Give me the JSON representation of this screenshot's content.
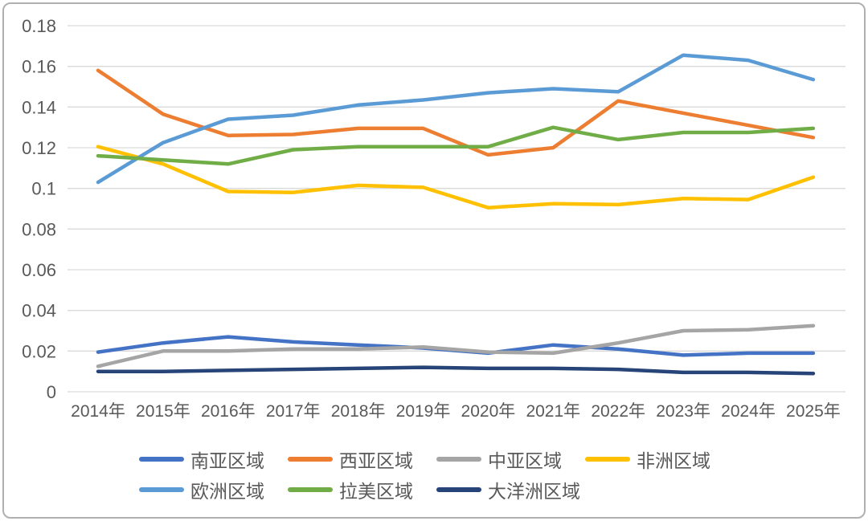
{
  "chart_data": {
    "type": "line",
    "title": "",
    "categories": [
      "2014年",
      "2015年",
      "2016年",
      "2017年",
      "2018年",
      "2019年",
      "2020年",
      "2021年",
      "2022年",
      "2023年",
      "2024年",
      "2025年"
    ],
    "series": [
      {
        "name": "南亚区域",
        "color": "#4472C4",
        "values": [
          0.0195,
          0.024,
          0.027,
          0.0245,
          0.023,
          0.0215,
          0.019,
          0.023,
          0.021,
          0.018,
          0.019,
          0.019
        ]
      },
      {
        "name": "西亚区域",
        "color": "#ED7D31",
        "values": [
          0.158,
          0.1365,
          0.126,
          0.1265,
          0.1295,
          0.1295,
          0.1165,
          0.12,
          0.143,
          0.137,
          0.131,
          0.125
        ]
      },
      {
        "name": "中亚区域",
        "color": "#A5A5A5",
        "values": [
          0.0125,
          0.02,
          0.02,
          0.021,
          0.021,
          0.022,
          0.0195,
          0.019,
          0.024,
          0.03,
          0.0305,
          0.0325
        ]
      },
      {
        "name": "非洲区域",
        "color": "#FFC000",
        "values": [
          0.1205,
          0.112,
          0.0985,
          0.098,
          0.1015,
          0.1005,
          0.0905,
          0.0925,
          0.092,
          0.095,
          0.0945,
          0.1055
        ]
      },
      {
        "name": "欧洲区域",
        "color": "#5B9BD5",
        "values": [
          0.103,
          0.1225,
          0.134,
          0.136,
          0.141,
          0.1435,
          0.147,
          0.149,
          0.1475,
          0.1655,
          0.163,
          0.1535
        ]
      },
      {
        "name": "拉美区域",
        "color": "#70AD47",
        "values": [
          0.116,
          0.114,
          0.112,
          0.119,
          0.1205,
          0.1205,
          0.1205,
          0.13,
          0.124,
          0.1275,
          0.1275,
          0.1295
        ]
      },
      {
        "name": "大洋洲区域",
        "color": "#264478",
        "values": [
          0.01,
          0.01,
          0.0105,
          0.011,
          0.0115,
          0.012,
          0.0115,
          0.0115,
          0.011,
          0.0095,
          0.0095,
          0.009
        ]
      }
    ],
    "y_axis": {
      "min": 0,
      "max": 0.18,
      "step": 0.02,
      "tick_labels": [
        "0.18",
        "0.16",
        "0.14",
        "0.12",
        "0.1",
        "0.08",
        "0.06",
        "0.04",
        "0.02",
        "0"
      ]
    },
    "grid": true,
    "legend_position": "bottom",
    "colors": {
      "gridline": "#d9d9d9",
      "axis_text": "#595959",
      "frame_border": "#b0b0b0",
      "background": "#ffffff"
    }
  }
}
